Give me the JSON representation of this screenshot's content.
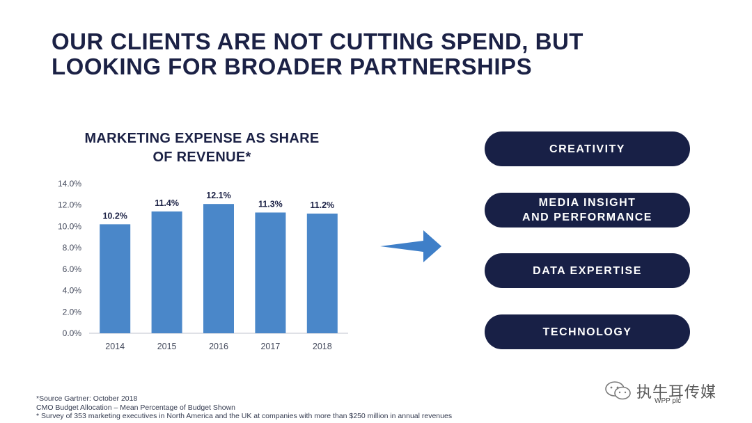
{
  "title": {
    "line1": "OUR CLIENTS ARE NOT CUTTING SPEND, BUT",
    "line2": "LOOKING FOR BROADER PARTNERSHIPS"
  },
  "colors": {
    "navy": "#1b2145",
    "pill": "#182046",
    "bar": "#4a87c9",
    "arrow": "#3f7fc8"
  },
  "chart_data": {
    "type": "bar",
    "title": "MARKETING EXPENSE AS SHARE OF REVENUE*",
    "title_lines": [
      "MARKETING EXPENSE AS SHARE",
      "OF REVENUE*"
    ],
    "categories": [
      "2014",
      "2015",
      "2016",
      "2017",
      "2018"
    ],
    "values": [
      10.2,
      11.4,
      12.1,
      11.3,
      11.2
    ],
    "data_labels": [
      "10.2%",
      "11.4%",
      "12.1%",
      "11.3%",
      "11.2%"
    ],
    "yticks": [
      "0.0%",
      "2.0%",
      "4.0%",
      "6.0%",
      "8.0%",
      "10.0%",
      "12.0%",
      "14.0%"
    ],
    "ylim": [
      0,
      14
    ],
    "xlabel": "",
    "ylabel": "",
    "grid": false
  },
  "arrow_icon": "right-arrow-icon",
  "pills": [
    {
      "lines": [
        "CREATIVITY"
      ]
    },
    {
      "lines": [
        "MEDIA INSIGHT",
        "AND PERFORMANCE"
      ]
    },
    {
      "lines": [
        "DATA EXPERTISE"
      ]
    },
    {
      "lines": [
        "TECHNOLOGY"
      ]
    }
  ],
  "footnotes": {
    "source": "*Source Gartner: October 2018",
    "allocation": "CMO Budget Allocation – Mean Percentage of Budget Shown",
    "survey": "* Survey of 353 marketing executives in North America and the UK at companies with more than $250 million in annual revenues"
  },
  "watermark": {
    "text": "执牛耳传媒",
    "icon": "wechat-icon"
  },
  "company": "WPP plc"
}
